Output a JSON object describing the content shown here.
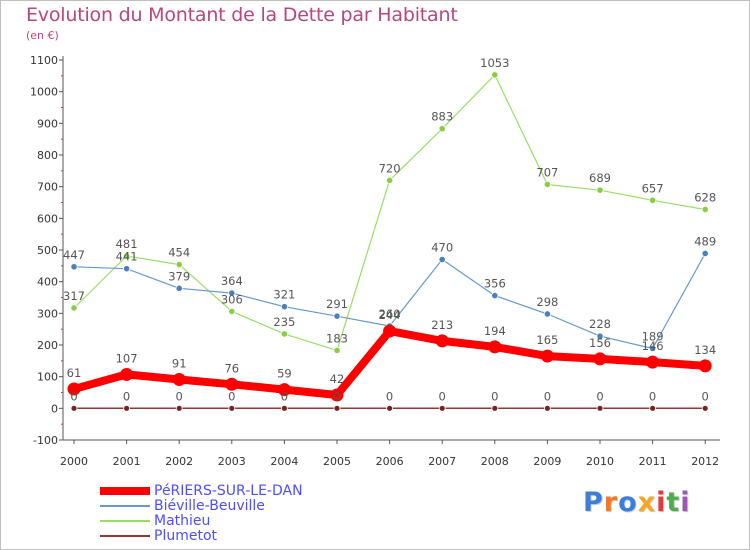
{
  "title": "Evolution du Montant de la Dette par Habitant",
  "unit": "(en €)",
  "brand": "Proxiti",
  "colors": {
    "title": "#b8467d",
    "axis": "#555555",
    "grid_tick": "#cc3366",
    "legend_text": "#4d4dff",
    "label_text": "#555555"
  },
  "chart_data": {
    "type": "line",
    "title": "Evolution du Montant de la Dette par Habitant",
    "ylabel": "(en €)",
    "xlabel": "",
    "x": [
      "2000",
      "2001",
      "2002",
      "2003",
      "2004",
      "2005",
      "2006",
      "2007",
      "2008",
      "2009",
      "2010",
      "2011",
      "2012"
    ],
    "ylim": [
      -100,
      1100
    ],
    "yticks": [
      -100,
      0,
      100,
      200,
      300,
      400,
      500,
      600,
      700,
      800,
      900,
      1000,
      1100
    ],
    "grid": false,
    "legend_position": "bottom-left",
    "series": [
      {
        "name": "PéRIERS-SUR-LE-DAN",
        "color": "#ff0000",
        "values": [
          61,
          107,
          91,
          76,
          59,
          42,
          244,
          213,
          194,
          165,
          156,
          146,
          134
        ]
      },
      {
        "name": "Biéville-Beuville",
        "color": "#6699cc",
        "values": [
          447,
          441,
          379,
          364,
          321,
          291,
          260,
          470,
          356,
          298,
          228,
          189,
          489
        ]
      },
      {
        "name": "Mathieu",
        "color": "#99dd66",
        "values": [
          317,
          481,
          454,
          306,
          235,
          183,
          720,
          883,
          1053,
          707,
          689,
          657,
          628
        ]
      },
      {
        "name": "Plumetot",
        "color": "#993333",
        "values": [
          0,
          0,
          0,
          0,
          0,
          0,
          0,
          0,
          0,
          0,
          0,
          0,
          0
        ]
      }
    ]
  }
}
